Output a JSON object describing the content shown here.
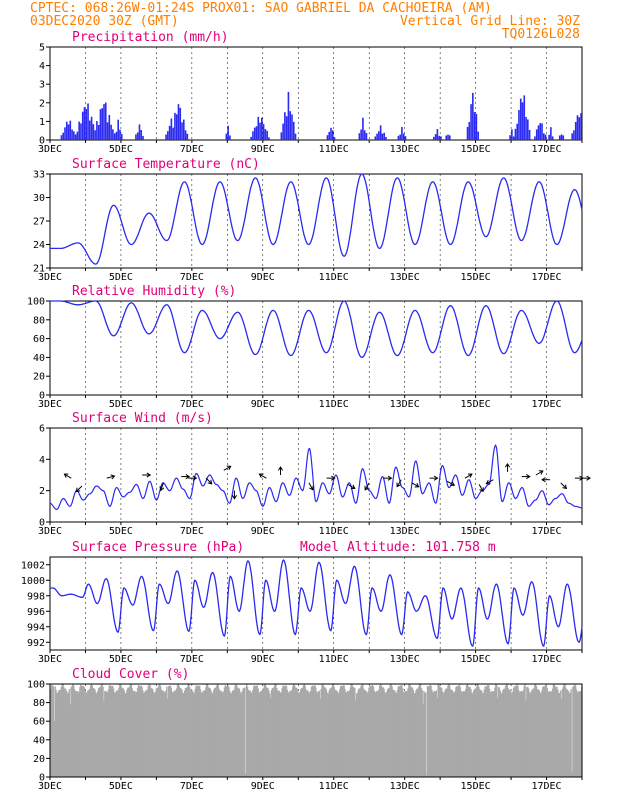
{
  "header": {
    "line1": "CPTEC:  068:26W-01:24S  PROX01: SAO GABRIEL DA CACHOEIRA (AM)",
    "line2_left": "03DEC2020 30Z (GMT)",
    "line2_right": "Vertical Grid Line: 30Z",
    "line3_right": "TQ0126L028",
    "color": "#ff7f00"
  },
  "x_labels": [
    "3DEC",
    "5DEC",
    "7DEC",
    "9DEC",
    "11DEC",
    "13DEC",
    "15DEC",
    "17DEC"
  ],
  "colors": {
    "series": "#2a2af0",
    "title": "#e0007a",
    "cloud": "#a9a9a9"
  },
  "chart_data": [
    {
      "type": "bar",
      "title": "Precipitation (mm/h)",
      "ylim": [
        0,
        5
      ],
      "yticks": [
        0,
        1,
        2,
        3,
        4,
        5
      ],
      "x_range_days": [
        0,
        15
      ],
      "events": [
        {
          "day": 0.5,
          "peak": 1.3,
          "width": 0.25
        },
        {
          "day": 1.0,
          "peak": 2.3,
          "width": 0.35
        },
        {
          "day": 1.5,
          "peak": 2.4,
          "width": 0.35
        },
        {
          "day": 1.9,
          "peak": 1.1,
          "width": 0.15
        },
        {
          "day": 2.5,
          "peak": 0.9,
          "width": 0.15
        },
        {
          "day": 3.6,
          "peak": 2.2,
          "width": 0.3
        },
        {
          "day": 3.4,
          "peak": 1.2,
          "width": 0.2
        },
        {
          "day": 5.0,
          "peak": 0.8,
          "width": 0.1
        },
        {
          "day": 5.9,
          "peak": 1.5,
          "width": 0.3
        },
        {
          "day": 6.7,
          "peak": 2.6,
          "width": 0.25
        },
        {
          "day": 7.9,
          "peak": 0.8,
          "width": 0.15
        },
        {
          "day": 8.8,
          "peak": 1.2,
          "width": 0.15
        },
        {
          "day": 9.3,
          "peak": 0.8,
          "width": 0.2
        },
        {
          "day": 9.9,
          "peak": 0.7,
          "width": 0.15
        },
        {
          "day": 10.9,
          "peak": 0.6,
          "width": 0.15
        },
        {
          "day": 11.9,
          "peak": 2.8,
          "width": 0.2
        },
        {
          "day": 11.2,
          "peak": 0.5,
          "width": 0.1
        },
        {
          "day": 13.3,
          "peak": 3.0,
          "width": 0.25
        },
        {
          "day": 13.0,
          "peak": 0.6,
          "width": 0.1
        },
        {
          "day": 13.8,
          "peak": 1.2,
          "width": 0.2
        },
        {
          "day": 14.1,
          "peak": 0.7,
          "width": 0.1
        },
        {
          "day": 14.9,
          "peak": 1.8,
          "width": 0.25
        },
        {
          "day": 14.4,
          "peak": 0.5,
          "width": 0.1
        }
      ],
      "series_name": "precipitation"
    },
    {
      "type": "line",
      "title": "Surface Temperature (nC)",
      "ylim": [
        21,
        33
      ],
      "yticks": [
        21,
        24,
        27,
        30,
        33
      ],
      "x_range_days": [
        0,
        15
      ],
      "max_hour": 19,
      "min_hour": 7,
      "daily": [
        {
          "day": 0,
          "min": 23.5,
          "max": 24.2
        },
        {
          "day": 1,
          "min": 21.5,
          "max": 29.0
        },
        {
          "day": 2,
          "min": 24.0,
          "max": 28.0
        },
        {
          "day": 3,
          "min": 24.5,
          "max": 32.0
        },
        {
          "day": 4,
          "min": 24.0,
          "max": 32.0
        },
        {
          "day": 5,
          "min": 24.5,
          "max": 32.5
        },
        {
          "day": 6,
          "min": 24.0,
          "max": 32.0
        },
        {
          "day": 7,
          "min": 24.0,
          "max": 32.5
        },
        {
          "day": 8,
          "min": 22.5,
          "max": 33.0
        },
        {
          "day": 9,
          "min": 23.5,
          "max": 32.5
        },
        {
          "day": 10,
          "min": 24.0,
          "max": 32.0
        },
        {
          "day": 11,
          "min": 24.0,
          "max": 32.0
        },
        {
          "day": 12,
          "min": 25.0,
          "max": 32.5
        },
        {
          "day": 13,
          "min": 24.5,
          "max": 32.0
        },
        {
          "day": 14,
          "min": 24.0,
          "max": 31.0
        },
        {
          "day": 15,
          "min": 24.0,
          "max": 28.0
        }
      ]
    },
    {
      "type": "line",
      "title": "Relative Humidity (%)",
      "ylim": [
        0,
        100
      ],
      "yticks": [
        0,
        20,
        40,
        60,
        80,
        100
      ],
      "x_range_days": [
        0,
        15
      ],
      "max_hour": 7,
      "min_hour": 19,
      "daily": [
        {
          "day": 0,
          "min": 96,
          "max": 100
        },
        {
          "day": 1,
          "min": 63,
          "max": 100
        },
        {
          "day": 2,
          "min": 65,
          "max": 98
        },
        {
          "day": 3,
          "min": 45,
          "max": 96
        },
        {
          "day": 4,
          "min": 60,
          "max": 90
        },
        {
          "day": 5,
          "min": 43,
          "max": 88
        },
        {
          "day": 6,
          "min": 42,
          "max": 90
        },
        {
          "day": 7,
          "min": 45,
          "max": 90
        },
        {
          "day": 8,
          "min": 40,
          "max": 100
        },
        {
          "day": 9,
          "min": 42,
          "max": 88
        },
        {
          "day": 10,
          "min": 45,
          "max": 90
        },
        {
          "day": 11,
          "min": 42,
          "max": 95
        },
        {
          "day": 12,
          "min": 44,
          "max": 95
        },
        {
          "day": 13,
          "min": 55,
          "max": 90
        },
        {
          "day": 14,
          "min": 45,
          "max": 100
        },
        {
          "day": 15,
          "min": 80,
          "max": 82
        }
      ]
    },
    {
      "type": "line",
      "title": "Surface Wind (m/s)",
      "ylim": [
        0,
        6
      ],
      "yticks": [
        0,
        2,
        4,
        6
      ],
      "x_range_days": [
        0,
        15
      ],
      "values_6h": [
        1.2,
        0.8,
        1.5,
        1.0,
        2.0,
        1.4,
        1.8,
        2.3,
        2.0,
        1.0,
        2.2,
        1.6,
        1.9,
        2.4,
        1.5,
        2.6,
        1.4,
        2.5,
        2.0,
        2.8,
        2.1,
        1.5,
        3.1,
        2.3,
        3.0,
        2.4,
        2.0,
        1.2,
        2.8,
        1.5,
        2.5,
        2.0,
        1.0,
        2.2,
        1.3,
        2.5,
        1.7,
        2.8,
        2.0,
        4.7,
        1.3,
        2.5,
        1.8,
        3.0,
        1.6,
        2.5,
        1.2,
        3.4,
        2.0,
        1.5,
        2.9,
        1.2,
        3.5,
        2.2,
        1.6,
        3.9,
        1.8,
        2.5,
        1.2,
        3.6,
        2.2,
        3.0,
        1.7,
        2.7,
        1.5,
        2.0,
        2.4,
        4.9,
        1.3,
        2.5,
        1.5,
        2.2,
        1.0,
        1.4,
        2.0,
        1.1,
        1.5,
        1.8,
        1.2,
        1.0,
        0.9
      ],
      "arrows": [
        {
          "day": 0.6,
          "y": 2.8,
          "angle": 300
        },
        {
          "day": 0.9,
          "y": 2.3,
          "angle": 225
        },
        {
          "day": 1.6,
          "y": 2.8,
          "angle": 75
        },
        {
          "day": 2.6,
          "y": 3.0,
          "angle": 90
        },
        {
          "day": 3.2,
          "y": 2.5,
          "angle": 200
        },
        {
          "day": 3.7,
          "y": 2.9,
          "angle": 90
        },
        {
          "day": 3.9,
          "y": 2.8,
          "angle": 90
        },
        {
          "day": 4.4,
          "y": 2.8,
          "angle": 135
        },
        {
          "day": 4.9,
          "y": 3.3,
          "angle": 60
        },
        {
          "day": 5.2,
          "y": 2.0,
          "angle": 180
        },
        {
          "day": 6.1,
          "y": 2.8,
          "angle": 300
        },
        {
          "day": 6.5,
          "y": 3.0,
          "angle": 0
        },
        {
          "day": 7.3,
          "y": 2.5,
          "angle": 150
        },
        {
          "day": 7.8,
          "y": 2.8,
          "angle": 90
        },
        {
          "day": 8.4,
          "y": 2.4,
          "angle": 120
        },
        {
          "day": 9.0,
          "y": 2.5,
          "angle": 210
        },
        {
          "day": 9.4,
          "y": 2.8,
          "angle": 90
        },
        {
          "day": 9.9,
          "y": 2.7,
          "angle": 210
        },
        {
          "day": 10.2,
          "y": 2.5,
          "angle": 120
        },
        {
          "day": 10.7,
          "y": 2.8,
          "angle": 90
        },
        {
          "day": 11.2,
          "y": 2.6,
          "angle": 120
        },
        {
          "day": 11.7,
          "y": 2.8,
          "angle": 60
        },
        {
          "day": 12.1,
          "y": 2.4,
          "angle": 150
        },
        {
          "day": 12.5,
          "y": 2.7,
          "angle": 240
        },
        {
          "day": 12.9,
          "y": 3.2,
          "angle": 0
        },
        {
          "day": 13.3,
          "y": 2.9,
          "angle": 90
        },
        {
          "day": 13.7,
          "y": 3.0,
          "angle": 60
        },
        {
          "day": 14.1,
          "y": 2.7,
          "angle": 270
        },
        {
          "day": 14.4,
          "y": 2.5,
          "angle": 135
        },
        {
          "day": 14.8,
          "y": 2.8,
          "angle": 90
        },
        {
          "day": 15.0,
          "y": 2.8,
          "angle": 90
        }
      ]
    },
    {
      "type": "line",
      "title": "Surface Pressure (hPa)",
      "subtitle": "Model Altitude: 101.758  m",
      "ylim": [
        991,
        1003
      ],
      "yticks": [
        992,
        994,
        996,
        998,
        1000,
        1002
      ],
      "x_range_days": [
        0,
        15
      ],
      "hi1_hour": 14,
      "lo1_hour": 22,
      "hi2_hour": 2,
      "lo2_hour": 8,
      "daily": [
        {
          "day": 0,
          "hi1": 998.2,
          "lo1": 997.8,
          "hi2": 999.0,
          "lo2": 998.0
        },
        {
          "day": 1,
          "hi1": 1000.2,
          "lo1": 993.3,
          "hi2": 999.5,
          "lo2": 997.0
        },
        {
          "day": 2,
          "hi1": 1000.5,
          "lo1": 993.5,
          "hi2": 999.0,
          "lo2": 996.8
        },
        {
          "day": 3,
          "hi1": 1001.2,
          "lo1": 993.4,
          "hi2": 999.5,
          "lo2": 997.0
        },
        {
          "day": 4,
          "hi1": 1001.0,
          "lo1": 992.8,
          "hi2": 1000.0,
          "lo2": 996.5
        },
        {
          "day": 5,
          "hi1": 1002.5,
          "lo1": 993.0,
          "hi2": 1000.5,
          "lo2": 996.0
        },
        {
          "day": 6,
          "hi1": 1002.6,
          "lo1": 993.0,
          "hi2": 1000.0,
          "lo2": 996.0
        },
        {
          "day": 7,
          "hi1": 1002.3,
          "lo1": 993.5,
          "hi2": 999.0,
          "lo2": 996.0
        },
        {
          "day": 8,
          "hi1": 1001.8,
          "lo1": 993.0,
          "hi2": 1000.0,
          "lo2": 997.0
        },
        {
          "day": 9,
          "hi1": 1000.7,
          "lo1": 993.0,
          "hi2": 999.0,
          "lo2": 996.0
        },
        {
          "day": 10,
          "hi1": 998.0,
          "lo1": 992.5,
          "hi2": 998.5,
          "lo2": 996.0
        },
        {
          "day": 11,
          "hi1": 999.0,
          "lo1": 991.5,
          "hi2": 999.0,
          "lo2": 995.0
        },
        {
          "day": 12,
          "hi1": 999.5,
          "lo1": 991.8,
          "hi2": 999.0,
          "lo2": 995.0
        },
        {
          "day": 13,
          "hi1": 999.8,
          "lo1": 991.5,
          "hi2": 999.0,
          "lo2": 995.5
        },
        {
          "day": 14,
          "hi1": 999.5,
          "lo1": 992.0,
          "hi2": 998.0,
          "lo2": 994.0
        },
        {
          "day": 15,
          "hi1": 996.0,
          "lo1": 993.0,
          "hi2": 996.0,
          "lo2": 994.0
        }
      ]
    },
    {
      "type": "area",
      "title": "Cloud Cover (%)",
      "ylim": [
        0,
        100
      ],
      "yticks": [
        0,
        20,
        40,
        60,
        80,
        100
      ],
      "x_range_days": [
        0,
        15
      ],
      "base_percent": 95,
      "dips": [
        {
          "day": 0.1,
          "value": 60
        },
        {
          "day": 0.55,
          "value": 78
        },
        {
          "day": 1.5,
          "value": 82
        },
        {
          "day": 3.3,
          "value": 84
        },
        {
          "day": 5.1,
          "value": 90
        },
        {
          "day": 5.5,
          "value": 4
        },
        {
          "day": 6.2,
          "value": 85
        },
        {
          "day": 7.6,
          "value": 84
        },
        {
          "day": 8.6,
          "value": 82
        },
        {
          "day": 10.5,
          "value": 78
        },
        {
          "day": 10.6,
          "value": 2
        },
        {
          "day": 10.9,
          "value": 85
        },
        {
          "day": 12.6,
          "value": 85
        },
        {
          "day": 13.4,
          "value": 82
        },
        {
          "day": 14.4,
          "value": 84
        },
        {
          "day": 14.7,
          "value": 5
        }
      ]
    }
  ]
}
